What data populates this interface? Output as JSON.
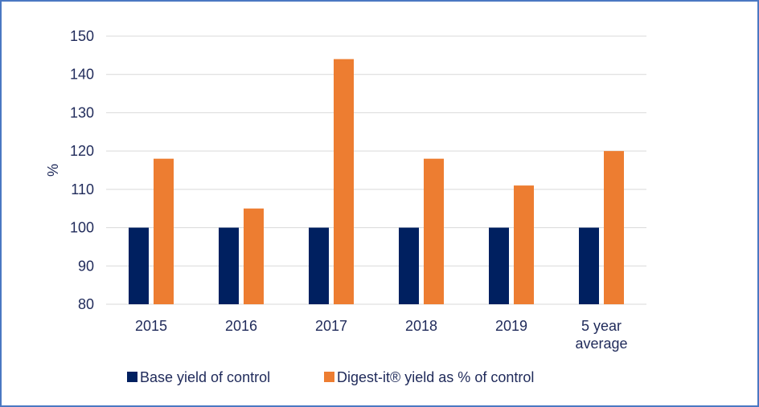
{
  "chart_data": {
    "type": "bar",
    "categories": [
      "2015",
      "2016",
      "2017",
      "2018",
      "2019",
      "5 year\naverage"
    ],
    "series": [
      {
        "name": "Base yield of control",
        "values": [
          100,
          100,
          100,
          100,
          100,
          100
        ],
        "color": "#002060"
      },
      {
        "name": "Digest-it® yield as % of control",
        "values": [
          118,
          105,
          144,
          118,
          111,
          120
        ],
        "color": "#ed7d31"
      }
    ],
    "ylabel": "%",
    "ylim": [
      80,
      150
    ],
    "yticks": [
      80,
      90,
      100,
      110,
      120,
      130,
      140,
      150
    ],
    "grid": true,
    "legend_position": "bottom",
    "colors": {
      "text": "#1f2a5a",
      "grid": "#d9d9d9",
      "frame": "#4a78c2"
    }
  }
}
